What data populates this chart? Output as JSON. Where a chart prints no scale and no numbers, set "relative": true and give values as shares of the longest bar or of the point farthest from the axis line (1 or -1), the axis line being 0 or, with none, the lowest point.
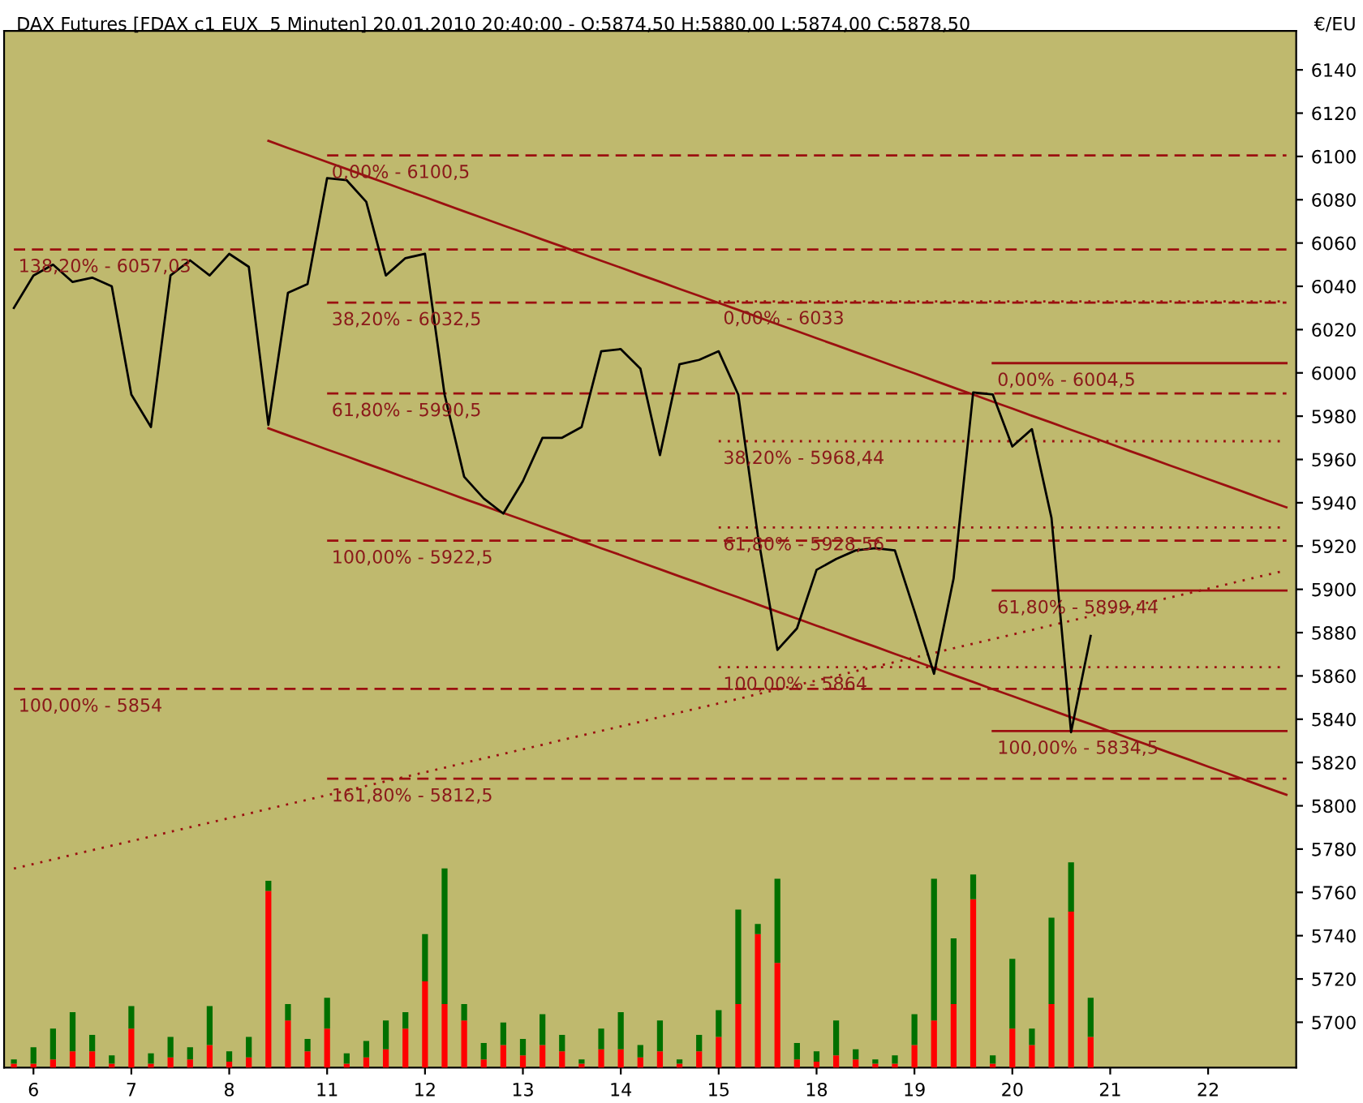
{
  "chart_data": [
    {
      "type": "line",
      "title": "DAX Futures [FDAX c1 EUX  5 Minuten] 20.01.2010 20:40:00 - O:5874,50 H:5880,00 L:5874,00 C:5878,50",
      "ylabel": "€/EU",
      "categories": [
        null,
        "6",
        null,
        null,
        null,
        null,
        "7",
        null,
        null,
        null,
        null,
        "8",
        null,
        null,
        null,
        null,
        "11",
        null,
        null,
        null,
        null,
        "12",
        null,
        null,
        null,
        null,
        "13",
        null,
        null,
        null,
        null,
        "14",
        null,
        null,
        null,
        null,
        "15",
        null,
        null,
        null,
        null,
        "18",
        null,
        null,
        null,
        null,
        "19",
        null,
        null,
        null,
        null,
        "20",
        null,
        null,
        null,
        null,
        "21",
        null,
        null,
        null,
        null,
        "22",
        null,
        null,
        null,
        null
      ],
      "ylim": [
        5679,
        6158
      ],
      "yticks": [
        5700,
        5720,
        5740,
        5760,
        5780,
        5800,
        5820,
        5840,
        5860,
        5880,
        5900,
        5920,
        5940,
        5960,
        5980,
        6000,
        6020,
        6040,
        6060,
        6080,
        6100,
        6120,
        6140
      ],
      "series": [
        {
          "type": "line",
          "name": "138,20% - 6057,03",
          "line_style": "dashed",
          "color": "#9b1010",
          "values": [
            6057.03,
            6057.03,
            6057.03,
            6057.03,
            6057.03,
            6057.03,
            6057.03,
            6057.03,
            6057.03,
            6057.03,
            6057.03,
            6057.03,
            6057.03,
            6057.03,
            6057.03,
            6057.03,
            6057.03,
            6057.03,
            6057.03,
            6057.03,
            6057.03,
            6057.03,
            6057.03,
            6057.03,
            6057.03,
            6057.03,
            6057.03,
            6057.03,
            6057.03,
            6057.03,
            6057.03,
            6057.03,
            6057.03,
            6057.03,
            6057.03,
            6057.03,
            6057.03,
            6057.03,
            6057.03,
            6057.03,
            6057.03,
            6057.03,
            6057.03,
            6057.03,
            6057.03,
            6057.03,
            6057.03,
            6057.03,
            6057.03,
            6057.03,
            6057.03,
            6057.03,
            6057.03,
            6057.03,
            6057.03,
            6057.03,
            6057.03,
            6057.03,
            6057.03,
            6057.03,
            6057.03,
            6057.03,
            6057.03,
            6057.03,
            6057.03,
            6057.03
          ]
        },
        {
          "type": "line",
          "name": "100,00% - 5854",
          "line_style": "dashed",
          "color": "#9b1010",
          "values": [
            5854,
            5854,
            5854,
            5854,
            5854,
            5854,
            5854,
            5854,
            5854,
            5854,
            5854,
            5854,
            5854,
            5854,
            5854,
            5854,
            5854,
            5854,
            5854,
            5854,
            5854,
            5854,
            5854,
            5854,
            5854,
            5854,
            5854,
            5854,
            5854,
            5854,
            5854,
            5854,
            5854,
            5854,
            5854,
            5854,
            5854,
            5854,
            5854,
            5854,
            5854,
            5854,
            5854,
            5854,
            5854,
            5854,
            5854,
            5854,
            5854,
            5854,
            5854,
            5854,
            5854,
            5854,
            5854,
            5854,
            5854,
            5854,
            5854,
            5854,
            5854,
            5854,
            5854,
            5854,
            5854,
            5854
          ]
        },
        {
          "type": "line",
          "name": "0,00% - 6100,5",
          "line_style": "dashed",
          "color": "#9b1010",
          "values": [
            null,
            null,
            null,
            null,
            null,
            null,
            null,
            null,
            null,
            null,
            null,
            null,
            null,
            null,
            null,
            null,
            6100.5,
            6100.5,
            6100.5,
            6100.5,
            6100.5,
            6100.5,
            6100.5,
            6100.5,
            6100.5,
            6100.5,
            6100.5,
            6100.5,
            6100.5,
            6100.5,
            6100.5,
            6100.5,
            6100.5,
            6100.5,
            6100.5,
            6100.5,
            6100.5,
            6100.5,
            6100.5,
            6100.5,
            6100.5,
            6100.5,
            6100.5,
            6100.5,
            6100.5,
            6100.5,
            6100.5,
            6100.5,
            6100.5,
            6100.5,
            6100.5,
            6100.5,
            6100.5,
            6100.5,
            6100.5,
            6100.5,
            6100.5,
            6100.5,
            6100.5,
            6100.5,
            6100.5,
            6100.5,
            6100.5,
            6100.5,
            6100.5,
            6100.5
          ]
        },
        {
          "type": "line",
          "name": "38,20% - 6032,5",
          "line_style": "dashed",
          "color": "#9b1010",
          "values": [
            null,
            null,
            null,
            null,
            null,
            null,
            null,
            null,
            null,
            null,
            null,
            null,
            null,
            null,
            null,
            null,
            6032.5,
            6032.5,
            6032.5,
            6032.5,
            6032.5,
            6032.5,
            6032.5,
            6032.5,
            6032.5,
            6032.5,
            6032.5,
            6032.5,
            6032.5,
            6032.5,
            6032.5,
            6032.5,
            6032.5,
            6032.5,
            6032.5,
            6032.5,
            6032.5,
            6032.5,
            6032.5,
            6032.5,
            6032.5,
            6032.5,
            6032.5,
            6032.5,
            6032.5,
            6032.5,
            6032.5,
            6032.5,
            6032.5,
            6032.5,
            6032.5,
            6032.5,
            6032.5,
            6032.5,
            6032.5,
            6032.5,
            6032.5,
            6032.5,
            6032.5,
            6032.5,
            6032.5,
            6032.5,
            6032.5,
            6032.5,
            6032.5,
            6032.5
          ]
        },
        {
          "type": "line",
          "name": "61,80% - 5990,5",
          "line_style": "dashed",
          "color": "#9b1010",
          "values": [
            null,
            null,
            null,
            null,
            null,
            null,
            null,
            null,
            null,
            null,
            null,
            null,
            null,
            null,
            null,
            null,
            5990.5,
            5990.5,
            5990.5,
            5990.5,
            5990.5,
            5990.5,
            5990.5,
            5990.5,
            5990.5,
            5990.5,
            5990.5,
            5990.5,
            5990.5,
            5990.5,
            5990.5,
            5990.5,
            5990.5,
            5990.5,
            5990.5,
            5990.5,
            5990.5,
            5990.5,
            5990.5,
            5990.5,
            5990.5,
            5990.5,
            5990.5,
            5990.5,
            5990.5,
            5990.5,
            5990.5,
            5990.5,
            5990.5,
            5990.5,
            5990.5,
            5990.5,
            5990.5,
            5990.5,
            5990.5,
            5990.5,
            5990.5,
            5990.5,
            5990.5,
            5990.5,
            5990.5,
            5990.5,
            5990.5,
            5990.5,
            5990.5,
            5990.5
          ]
        },
        {
          "type": "line",
          "name": "100,00% - 5922,5",
          "line_style": "dashed",
          "color": "#9b1010",
          "values": [
            null,
            null,
            null,
            null,
            null,
            null,
            null,
            null,
            null,
            null,
            null,
            null,
            null,
            null,
            null,
            null,
            5922.5,
            5922.5,
            5922.5,
            5922.5,
            5922.5,
            5922.5,
            5922.5,
            5922.5,
            5922.5,
            5922.5,
            5922.5,
            5922.5,
            5922.5,
            5922.5,
            5922.5,
            5922.5,
            5922.5,
            5922.5,
            5922.5,
            5922.5,
            5922.5,
            5922.5,
            5922.5,
            5922.5,
            5922.5,
            5922.5,
            5922.5,
            5922.5,
            5922.5,
            5922.5,
            5922.5,
            5922.5,
            5922.5,
            5922.5,
            5922.5,
            5922.5,
            5922.5,
            5922.5,
            5922.5,
            5922.5,
            5922.5,
            5922.5,
            5922.5,
            5922.5,
            5922.5,
            5922.5,
            5922.5,
            5922.5,
            5922.5,
            5922.5
          ]
        },
        {
          "type": "line",
          "name": "161,80% - 5812,5",
          "line_style": "dashed",
          "color": "#9b1010",
          "values": [
            null,
            null,
            null,
            null,
            null,
            null,
            null,
            null,
            null,
            null,
            null,
            null,
            null,
            null,
            null,
            null,
            5812.5,
            5812.5,
            5812.5,
            5812.5,
            5812.5,
            5812.5,
            5812.5,
            5812.5,
            5812.5,
            5812.5,
            5812.5,
            5812.5,
            5812.5,
            5812.5,
            5812.5,
            5812.5,
            5812.5,
            5812.5,
            5812.5,
            5812.5,
            5812.5,
            5812.5,
            5812.5,
            5812.5,
            5812.5,
            5812.5,
            5812.5,
            5812.5,
            5812.5,
            5812.5,
            5812.5,
            5812.5,
            5812.5,
            5812.5,
            5812.5,
            5812.5,
            5812.5,
            5812.5,
            5812.5,
            5812.5,
            5812.5,
            5812.5,
            5812.5,
            5812.5,
            5812.5,
            5812.5,
            5812.5,
            5812.5,
            5812.5,
            5812.5
          ]
        },
        {
          "type": "line",
          "name": "0,00% - 6033",
          "line_style": "dotted",
          "color": "#9b1010",
          "values": [
            null,
            null,
            null,
            null,
            null,
            null,
            null,
            null,
            null,
            null,
            null,
            null,
            null,
            null,
            null,
            null,
            null,
            null,
            null,
            null,
            null,
            null,
            null,
            null,
            null,
            null,
            null,
            null,
            null,
            null,
            null,
            null,
            null,
            null,
            null,
            null,
            6033,
            6033,
            6033,
            6033,
            6033,
            6033,
            6033,
            6033,
            6033,
            6033,
            6033,
            6033,
            6033,
            6033,
            6033,
            6033,
            6033,
            6033,
            6033,
            6033,
            6033,
            6033,
            6033,
            6033,
            6033,
            6033,
            6033,
            6033,
            6033,
            6033
          ]
        },
        {
          "type": "line",
          "name": "38,20% - 5968,44",
          "line_style": "dotted",
          "color": "#9b1010",
          "values": [
            null,
            null,
            null,
            null,
            null,
            null,
            null,
            null,
            null,
            null,
            null,
            null,
            null,
            null,
            null,
            null,
            null,
            null,
            null,
            null,
            null,
            null,
            null,
            null,
            null,
            null,
            null,
            null,
            null,
            null,
            null,
            null,
            null,
            null,
            null,
            null,
            5968.44,
            5968.44,
            5968.44,
            5968.44,
            5968.44,
            5968.44,
            5968.44,
            5968.44,
            5968.44,
            5968.44,
            5968.44,
            5968.44,
            5968.44,
            5968.44,
            5968.44,
            5968.44,
            5968.44,
            5968.44,
            5968.44,
            5968.44,
            5968.44,
            5968.44,
            5968.44,
            5968.44,
            5968.44,
            5968.44,
            5968.44,
            5968.44,
            5968.44,
            5968.44
          ]
        },
        {
          "type": "line",
          "name": "61,80% - 5928,56",
          "line_style": "dotted",
          "color": "#9b1010",
          "values": [
            null,
            null,
            null,
            null,
            null,
            null,
            null,
            null,
            null,
            null,
            null,
            null,
            null,
            null,
            null,
            null,
            null,
            null,
            null,
            null,
            null,
            null,
            null,
            null,
            null,
            null,
            null,
            null,
            null,
            null,
            null,
            null,
            null,
            null,
            null,
            null,
            5928.56,
            5928.56,
            5928.56,
            5928.56,
            5928.56,
            5928.56,
            5928.56,
            5928.56,
            5928.56,
            5928.56,
            5928.56,
            5928.56,
            5928.56,
            5928.56,
            5928.56,
            5928.56,
            5928.56,
            5928.56,
            5928.56,
            5928.56,
            5928.56,
            5928.56,
            5928.56,
            5928.56,
            5928.56,
            5928.56,
            5928.56,
            5928.56,
            5928.56,
            5928.56
          ]
        },
        {
          "type": "line",
          "name": "100,00% - 5864",
          "line_style": "dotted",
          "color": "#9b1010",
          "values": [
            null,
            null,
            null,
            null,
            null,
            null,
            null,
            null,
            null,
            null,
            null,
            null,
            null,
            null,
            null,
            null,
            null,
            null,
            null,
            null,
            null,
            null,
            null,
            null,
            null,
            null,
            null,
            null,
            null,
            null,
            null,
            null,
            null,
            null,
            null,
            null,
            5864,
            5864,
            5864,
            5864,
            5864,
            5864,
            5864,
            5864,
            5864,
            5864,
            5864,
            5864,
            5864,
            5864,
            5864,
            5864,
            5864,
            5864,
            5864,
            5864,
            5864,
            5864,
            5864,
            5864,
            5864,
            5864,
            5864,
            5864,
            5864,
            5864
          ]
        },
        {
          "type": "line",
          "name": "0,00% - 6004,5",
          "line_style": "solid",
          "color": "#9b1010",
          "values": [
            null,
            null,
            null,
            null,
            null,
            null,
            null,
            null,
            null,
            null,
            null,
            null,
            null,
            null,
            null,
            null,
            null,
            null,
            null,
            null,
            null,
            null,
            null,
            null,
            null,
            null,
            null,
            null,
            null,
            null,
            null,
            null,
            null,
            null,
            null,
            null,
            null,
            null,
            null,
            null,
            null,
            null,
            null,
            null,
            null,
            null,
            null,
            null,
            null,
            null,
            6004.5,
            6004.5,
            6004.5,
            6004.5,
            6004.5,
            6004.5,
            6004.5,
            6004.5,
            6004.5,
            6004.5,
            6004.5,
            6004.5,
            6004.5,
            6004.5,
            6004.5,
            6004.5
          ]
        },
        {
          "type": "line",
          "name": "61,80% - 5899,44",
          "line_style": "solid",
          "color": "#9b1010",
          "values": [
            null,
            null,
            null,
            null,
            null,
            null,
            null,
            null,
            null,
            null,
            null,
            null,
            null,
            null,
            null,
            null,
            null,
            null,
            null,
            null,
            null,
            null,
            null,
            null,
            null,
            null,
            null,
            null,
            null,
            null,
            null,
            null,
            null,
            null,
            null,
            null,
            null,
            null,
            null,
            null,
            null,
            null,
            null,
            null,
            null,
            null,
            null,
            null,
            null,
            null,
            5899.44,
            5899.44,
            5899.44,
            5899.44,
            5899.44,
            5899.44,
            5899.44,
            5899.44,
            5899.44,
            5899.44,
            5899.44,
            5899.44,
            5899.44,
            5899.44,
            5899.44,
            5899.44
          ]
        },
        {
          "type": "line",
          "name": "100,00% - 5834,5",
          "line_style": "solid",
          "color": "#9b1010",
          "values": [
            null,
            null,
            null,
            null,
            null,
            null,
            null,
            null,
            null,
            null,
            null,
            null,
            null,
            null,
            null,
            null,
            null,
            null,
            null,
            null,
            null,
            null,
            null,
            null,
            null,
            null,
            null,
            null,
            null,
            null,
            null,
            null,
            null,
            null,
            null,
            null,
            null,
            null,
            null,
            null,
            null,
            null,
            null,
            null,
            null,
            null,
            null,
            null,
            null,
            null,
            5834.5,
            5834.5,
            5834.5,
            5834.5,
            5834.5,
            5834.5,
            5834.5,
            5834.5,
            5834.5,
            5834.5,
            5834.5,
            5834.5,
            5834.5,
            5834.5,
            5834.5,
            5834.5
          ]
        },
        {
          "type": "line",
          "line_style": "solid",
          "color": "#9b1010",
          "values": [
            null,
            null,
            null,
            null,
            null,
            null,
            null,
            null,
            null,
            null,
            null,
            null,
            null,
            6107.2,
            6103.9,
            6100.7,
            6097.4,
            6094.2,
            6090.9,
            6087.7,
            6084.4,
            6081.2,
            6077.9,
            6074.6,
            6071.4,
            6068.1,
            6064.9,
            6061.6,
            6058.4,
            6055.1,
            6051.8,
            6048.6,
            6045.3,
            6042.1,
            6038.8,
            6035.6,
            6032.3,
            6029.1,
            6025.8,
            6022.5,
            6019.3,
            6016.0,
            6012.8,
            6009.5,
            6006.3,
            6003.0,
            5999.8,
            5996.5,
            5993.2,
            5990.0,
            5986.7,
            5983.5,
            5980.2,
            5977.0,
            5973.7,
            5970.5,
            5967.2,
            5963.9,
            5960.7,
            5957.4,
            5954.2,
            5950.9,
            5947.7,
            5944.4,
            5941.1,
            5937.9
          ]
        },
        {
          "type": "line",
          "line_style": "solid",
          "color": "#9b1010",
          "values": [
            null,
            null,
            null,
            null,
            null,
            null,
            null,
            null,
            null,
            null,
            null,
            null,
            null,
            5974.4,
            5971.1,
            5967.9,
            5964.6,
            5961.4,
            5958.1,
            5954.9,
            5951.6,
            5948.4,
            5945.1,
            5941.8,
            5938.6,
            5935.3,
            5932.1,
            5928.8,
            5925.6,
            5922.3,
            5919.0,
            5915.8,
            5912.5,
            5909.3,
            5906.0,
            5902.8,
            5899.5,
            5896.3,
            5893.0,
            5889.7,
            5886.5,
            5883.2,
            5880.0,
            5876.7,
            5873.5,
            5870.2,
            5867.0,
            5863.7,
            5860.4,
            5857.2,
            5853.9,
            5850.7,
            5847.4,
            5844.2,
            5840.9,
            5837.7,
            5834.4,
            5831.1,
            5827.9,
            5824.6,
            5821.4,
            5818.1,
            5814.9,
            5811.6,
            5808.3,
            5805.1
          ]
        },
        {
          "type": "line",
          "line_style": "dotted",
          "color": "#9b1010",
          "values": [
            5771.0,
            5773.1,
            5775.2,
            5777.4,
            5779.5,
            5781.6,
            5783.7,
            5785.8,
            5788.0,
            5790.1,
            5792.2,
            5794.3,
            5796.4,
            5798.6,
            5800.7,
            5802.8,
            5804.9,
            5807.0,
            5809.2,
            5811.3,
            5813.4,
            5815.5,
            5817.6,
            5819.8,
            5821.9,
            5824.0,
            5826.1,
            5828.2,
            5830.4,
            5832.5,
            5834.6,
            5836.7,
            5838.8,
            5841.0,
            5843.1,
            5845.2,
            5847.3,
            5849.4,
            5851.6,
            5853.7,
            5855.8,
            5857.9,
            5860.0,
            5862.2,
            5864.3,
            5866.4,
            5868.5,
            5870.6,
            5872.8,
            5874.9,
            5877.0,
            5879.1,
            5881.2,
            5883.4,
            5885.5,
            5887.6,
            5889.7,
            5891.8,
            5894.0,
            5896.1,
            5898.2,
            5900.3,
            5902.4,
            5904.6,
            5906.7,
            5908.8
          ]
        },
        {
          "type": "line",
          "line_style": "solid",
          "color": "#000000",
          "values": [
            6030,
            6045,
            6050,
            6042,
            6044,
            6040,
            5990,
            5975,
            6045,
            6052,
            6045,
            6055,
            6049,
            5976,
            6037,
            6041,
            6090,
            6089,
            6079,
            6045,
            6053,
            6055,
            5990,
            5952,
            5942,
            5935,
            5950,
            5970,
            5970,
            5975,
            6010,
            6011,
            6002,
            5962,
            6004,
            6006,
            6010,
            5990,
            5925,
            5872,
            5882,
            5909,
            5914,
            5918,
            5919,
            5918,
            5890,
            5861,
            5905,
            5991,
            5990,
            5966,
            5974,
            5933,
            5834,
            5878.5,
            null,
            null,
            null,
            null,
            null,
            null,
            null,
            null,
            null,
            null
          ]
        }
      ]
    },
    {
      "type": "bar",
      "relative": true,
      "stacked": true,
      "categories": [
        null,
        null,
        null,
        null,
        null,
        null,
        null,
        null,
        null,
        null,
        null,
        null,
        null,
        null,
        null,
        null,
        null,
        null,
        null,
        null,
        null,
        null,
        null,
        null,
        null,
        null,
        null,
        null,
        null,
        null,
        null,
        null,
        null,
        null,
        null,
        null,
        null,
        null,
        null,
        null,
        null,
        null,
        null,
        null,
        null,
        null,
        null,
        null,
        null,
        null,
        null,
        null,
        null,
        null,
        null,
        null,
        null,
        null,
        null,
        null,
        null,
        null,
        null,
        null,
        null,
        null
      ],
      "series": [
        {
          "color": "#ff0000",
          "values": [
            0.02,
            0.02,
            0.04,
            0.08,
            0.08,
            0.02,
            0.19,
            0.02,
            0.05,
            0.04,
            0.11,
            0.03,
            0.05,
            0.86,
            0.23,
            0.08,
            0.19,
            0.02,
            0.05,
            0.09,
            0.19,
            0.42,
            0.31,
            0.23,
            0.04,
            0.11,
            0.06,
            0.11,
            0.08,
            0.02,
            0.09,
            0.09,
            0.05,
            0.08,
            0.02,
            0.08,
            0.15,
            0.31,
            0.65,
            0.51,
            0.04,
            0.03,
            0.06,
            0.04,
            0.02,
            0.02,
            0.11,
            0.23,
            0.31,
            0.82,
            0.02,
            0.19,
            0.11,
            0.31,
            0.76,
            0.15,
            null,
            null,
            null,
            null,
            null,
            null,
            null,
            null,
            null,
            null
          ]
        },
        {
          "color": "#007000",
          "values": [
            0.02,
            0.08,
            0.15,
            0.19,
            0.08,
            0.04,
            0.11,
            0.05,
            0.1,
            0.06,
            0.19,
            0.05,
            0.1,
            0.05,
            0.08,
            0.06,
            0.15,
            0.05,
            0.08,
            0.14,
            0.08,
            0.23,
            0.66,
            0.08,
            0.08,
            0.11,
            0.08,
            0.15,
            0.08,
            0.02,
            0.1,
            0.18,
            0.06,
            0.15,
            0.02,
            0.08,
            0.13,
            0.46,
            0.05,
            0.41,
            0.08,
            0.05,
            0.17,
            0.05,
            0.02,
            0.04,
            0.15,
            0.69,
            0.32,
            0.12,
            0.04,
            0.34,
            0.08,
            0.42,
            0.24,
            0.19,
            null,
            null,
            null,
            null,
            null,
            null,
            null,
            null,
            null,
            null
          ]
        }
      ]
    }
  ]
}
